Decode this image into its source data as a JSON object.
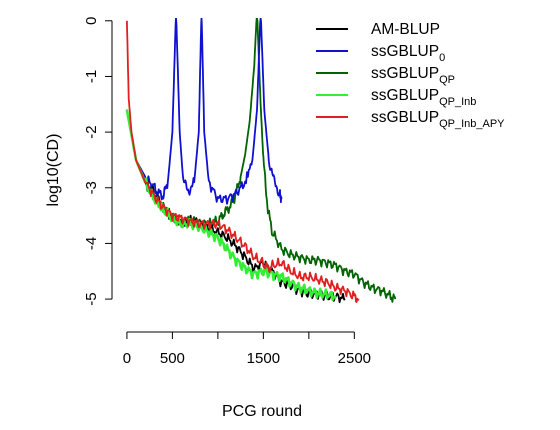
{
  "chart_data": {
    "type": "line",
    "title": "",
    "xlabel": "PCG round",
    "ylabel": "log10(CD)",
    "xlim": [
      -10,
      2980
    ],
    "ylim": [
      -5.25,
      0.05
    ],
    "log_scale_note": "y values are log10 of convergence criterion",
    "xticks": [
      0,
      500,
      1500,
      2500
    ],
    "yticks": [
      0,
      -1,
      -2,
      -3,
      -4,
      -5
    ],
    "grid": false,
    "legend_position": "top-right",
    "series": [
      {
        "name": "AM-BLUP",
        "name_sub": "",
        "color": "#000000",
        "points": [
          [
            0,
            -1.6
          ],
          [
            100,
            -2.5
          ],
          [
            200,
            -2.9
          ],
          [
            300,
            -3.1
          ],
          [
            400,
            -3.35
          ],
          [
            500,
            -3.55
          ],
          [
            600,
            -3.65
          ],
          [
            700,
            -3.6
          ],
          [
            800,
            -3.65
          ],
          [
            900,
            -3.75
          ],
          [
            1000,
            -3.8
          ],
          [
            1100,
            -3.9
          ],
          [
            1200,
            -4.05
          ],
          [
            1300,
            -4.25
          ],
          [
            1400,
            -4.45
          ],
          [
            1500,
            -4.35
          ],
          [
            1600,
            -4.5
          ],
          [
            1700,
            -4.7
          ],
          [
            1800,
            -4.75
          ],
          [
            1900,
            -4.85
          ],
          [
            2000,
            -4.9
          ],
          [
            2100,
            -4.9
          ],
          [
            2200,
            -4.95
          ],
          [
            2300,
            -4.95
          ],
          [
            2400,
            -5.0
          ]
        ]
      },
      {
        "name": "ssGBLUP",
        "name_sub": "0",
        "color": "#1010d0",
        "points": [
          [
            0,
            -1.6
          ],
          [
            100,
            -2.5
          ],
          [
            200,
            -2.8
          ],
          [
            300,
            -3.0
          ],
          [
            350,
            -3.1
          ],
          [
            400,
            -3.15
          ],
          [
            450,
            -2.9
          ],
          [
            500,
            -2.0
          ],
          [
            540,
            0.2
          ],
          [
            580,
            -2.0
          ],
          [
            620,
            -2.9
          ],
          [
            680,
            -3.05
          ],
          [
            740,
            -2.9
          ],
          [
            790,
            -2.0
          ],
          [
            820,
            0.2
          ],
          [
            850,
            -2.0
          ],
          [
            900,
            -2.9
          ],
          [
            1000,
            -3.2
          ],
          [
            1100,
            -3.2
          ],
          [
            1200,
            -3.1
          ],
          [
            1300,
            -2.9
          ],
          [
            1380,
            -2.5
          ],
          [
            1430,
            -1.6
          ],
          [
            1470,
            0.2
          ],
          [
            1510,
            -1.6
          ],
          [
            1560,
            -2.5
          ],
          [
            1620,
            -2.9
          ],
          [
            1680,
            -3.1
          ],
          [
            1700,
            -3.2
          ]
        ]
      },
      {
        "name": "ssGBLUP",
        "name_sub": "QP",
        "color": "#006400",
        "points": [
          [
            0,
            -1.6
          ],
          [
            100,
            -2.5
          ],
          [
            200,
            -2.9
          ],
          [
            300,
            -3.15
          ],
          [
            400,
            -3.35
          ],
          [
            500,
            -3.55
          ],
          [
            600,
            -3.6
          ],
          [
            700,
            -3.6
          ],
          [
            800,
            -3.65
          ],
          [
            900,
            -3.65
          ],
          [
            1000,
            -3.6
          ],
          [
            1050,
            -3.5
          ],
          [
            1100,
            -3.4
          ],
          [
            1150,
            -3.3
          ],
          [
            1200,
            -3.1
          ],
          [
            1250,
            -2.8
          ],
          [
            1300,
            -2.4
          ],
          [
            1350,
            -1.8
          ],
          [
            1400,
            -0.8
          ],
          [
            1430,
            0.2
          ],
          [
            1470,
            -1.5
          ],
          [
            1500,
            -2.5
          ],
          [
            1550,
            -3.4
          ],
          [
            1600,
            -3.8
          ],
          [
            1700,
            -4.1
          ],
          [
            1800,
            -4.2
          ],
          [
            1900,
            -4.25
          ],
          [
            2000,
            -4.3
          ],
          [
            2100,
            -4.3
          ],
          [
            2200,
            -4.35
          ],
          [
            2300,
            -4.4
          ],
          [
            2400,
            -4.5
          ],
          [
            2500,
            -4.55
          ],
          [
            2600,
            -4.7
          ],
          [
            2700,
            -4.8
          ],
          [
            2800,
            -4.85
          ],
          [
            2900,
            -4.95
          ],
          [
            2950,
            -5.0
          ]
        ]
      },
      {
        "name": "ssGBLUP",
        "name_sub": "QP_Inb",
        "color": "#33ee33",
        "points": [
          [
            0,
            -1.6
          ],
          [
            100,
            -2.5
          ],
          [
            200,
            -2.9
          ],
          [
            300,
            -3.2
          ],
          [
            400,
            -3.4
          ],
          [
            500,
            -3.55
          ],
          [
            600,
            -3.65
          ],
          [
            700,
            -3.65
          ],
          [
            800,
            -3.7
          ],
          [
            900,
            -3.8
          ],
          [
            1000,
            -3.9
          ],
          [
            1100,
            -4.1
          ],
          [
            1200,
            -4.3
          ],
          [
            1300,
            -4.45
          ],
          [
            1400,
            -4.55
          ],
          [
            1500,
            -4.5
          ],
          [
            1600,
            -4.55
          ],
          [
            1700,
            -4.6
          ],
          [
            1800,
            -4.7
          ],
          [
            1900,
            -4.8
          ],
          [
            2000,
            -4.85
          ],
          [
            2100,
            -4.9
          ],
          [
            2200,
            -4.92
          ],
          [
            2300,
            -4.95
          ]
        ]
      },
      {
        "name": "ssGBLUP",
        "name_sub": "QP_Inb_APY",
        "color": "#e02020",
        "points": [
          [
            0,
            0.0
          ],
          [
            20,
            -1.4
          ],
          [
            50,
            -2.0
          ],
          [
            100,
            -2.5
          ],
          [
            200,
            -2.9
          ],
          [
            300,
            -3.15
          ],
          [
            400,
            -3.35
          ],
          [
            500,
            -3.5
          ],
          [
            600,
            -3.55
          ],
          [
            700,
            -3.6
          ],
          [
            800,
            -3.65
          ],
          [
            900,
            -3.65
          ],
          [
            1000,
            -3.65
          ],
          [
            1100,
            -3.75
          ],
          [
            1200,
            -3.9
          ],
          [
            1300,
            -4.05
          ],
          [
            1400,
            -4.25
          ],
          [
            1500,
            -4.35
          ],
          [
            1550,
            -4.45
          ],
          [
            1600,
            -4.4
          ],
          [
            1700,
            -4.35
          ],
          [
            1800,
            -4.5
          ],
          [
            1900,
            -4.6
          ],
          [
            2000,
            -4.6
          ],
          [
            2100,
            -4.65
          ],
          [
            2200,
            -4.7
          ],
          [
            2300,
            -4.8
          ],
          [
            2400,
            -4.85
          ],
          [
            2500,
            -4.95
          ],
          [
            2550,
            -5.0
          ]
        ]
      }
    ]
  }
}
